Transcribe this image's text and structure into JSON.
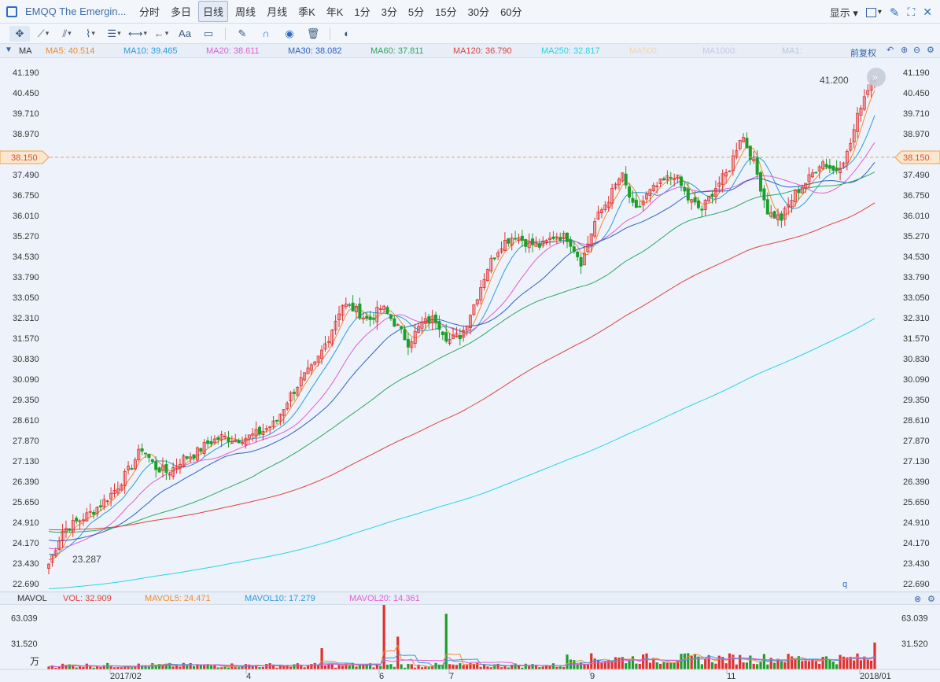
{
  "header": {
    "title": "EMQQ The Emergin...",
    "periods": [
      "分时",
      "多日",
      "日线",
      "周线",
      "月线",
      "季K",
      "年K",
      "1分",
      "3分",
      "5分",
      "15分",
      "30分",
      "60分"
    ],
    "active_period": "日线",
    "display_label": "显示"
  },
  "ma_bar": {
    "label": "MA",
    "items": [
      {
        "text": "MA5: 40.514",
        "color": "#f08a2c"
      },
      {
        "text": "MA10: 39.465",
        "color": "#2a9bd8"
      },
      {
        "text": "MA20: 38.611",
        "color": "#e05cd0"
      },
      {
        "text": "MA30: 38.082",
        "color": "#2b62c4"
      },
      {
        "text": "MA60: 37.811",
        "color": "#2aa860"
      },
      {
        "text": "MA120: 36.790",
        "color": "#e0413a"
      },
      {
        "text": "MA250: 32.817",
        "color": "#28d4e0"
      },
      {
        "text": "MA500",
        "color": "#f3d6a8"
      },
      {
        "text": "MA1000:",
        "color": "#c8c8e8"
      },
      {
        "text": "MA1:",
        "color": "#c0c8d8"
      }
    ],
    "adjust_label": "前复权"
  },
  "vol_bar": {
    "label": "MAVOL",
    "items": [
      {
        "text": "VOL: 32.909",
        "color": "#e0413a"
      },
      {
        "text": "MAVOL5: 24.471",
        "color": "#f08a2c"
      },
      {
        "text": "MAVOL10: 17.279",
        "color": "#2a9bd8"
      },
      {
        "text": "MAVOL20: 14.361",
        "color": "#e05cd0"
      }
    ]
  },
  "chart_data": [
    {
      "type": "candlestick",
      "y_ticks": [
        "41.190",
        "40.450",
        "39.710",
        "38.970",
        "38.150",
        "37.490",
        "36.750",
        "36.010",
        "35.270",
        "34.530",
        "33.790",
        "33.050",
        "32.310",
        "31.570",
        "30.830",
        "30.090",
        "29.350",
        "28.610",
        "27.870",
        "27.130",
        "26.390",
        "25.650",
        "24.910",
        "24.170",
        "23.430",
        "22.690"
      ],
      "ylim": [
        22.69,
        41.19
      ],
      "current_price": "38.150",
      "high_label": "41.200",
      "low_label": "23.287",
      "x_labels": [
        "2017/02",
        "4",
        "6",
        "7",
        "9",
        "11",
        "2018/01"
      ],
      "series": [
        {
          "name": "MA5",
          "color": "#f08a2c",
          "last": 40.514
        },
        {
          "name": "MA10",
          "color": "#2a9bd8",
          "last": 39.465
        },
        {
          "name": "MA20",
          "color": "#e05cd0",
          "last": 38.611
        },
        {
          "name": "MA30",
          "color": "#2b62c4",
          "last": 38.082
        },
        {
          "name": "MA60",
          "color": "#2aa860",
          "last": 37.811
        },
        {
          "name": "MA120",
          "color": "#e0413a",
          "last": 36.79
        },
        {
          "name": "MA250",
          "color": "#28d4e0",
          "last": 32.817
        }
      ],
      "price_path": [
        23.4,
        24.6,
        24.9,
        25.2,
        25.6,
        26.1,
        26.8,
        27.6,
        26.9,
        26.7,
        27.2,
        27.4,
        27.8,
        28.0,
        27.9,
        28.0,
        28.2,
        28.5,
        29.4,
        30.1,
        30.6,
        31.6,
        32.8,
        32.6,
        32.2,
        32.7,
        32.1,
        31.4,
        32.1,
        32.3,
        31.5,
        31.7,
        32.9,
        34.2,
        35.0,
        35.3,
        35.0,
        34.9,
        35.3,
        35.2,
        34.3,
        35.8,
        36.6,
        37.5,
        36.1,
        36.8,
        37.2,
        37.5,
        36.6,
        36.2,
        37.0,
        37.6,
        39.0,
        37.8,
        36.1,
        35.9,
        36.8,
        37.3,
        38.0,
        37.6,
        38.3,
        40.1,
        41.2
      ]
    },
    {
      "type": "bar",
      "title": "MAVOL",
      "y_ticks": [
        "63.039",
        "31.520"
      ],
      "unit": "万",
      "ylim": [
        0,
        75
      ],
      "last_volume": 32.909,
      "spikes": [
        [
          490,
          92
        ],
        [
          505,
          40
        ],
        [
          568,
          68
        ],
        [
          409,
          26
        ],
        [
          1110,
          32.9
        ]
      ]
    }
  ]
}
